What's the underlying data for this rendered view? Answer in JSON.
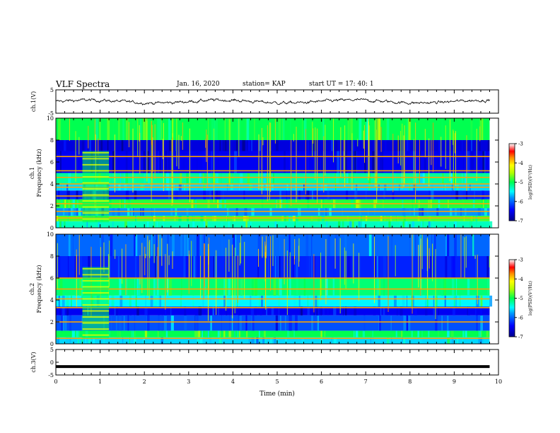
{
  "header": {
    "title": "VLF Spectra",
    "date": "Jan. 16, 2020",
    "station": "station= KAP",
    "start": "start  UT  =   17: 40: 1"
  },
  "chart_data": [
    {
      "type": "line",
      "name": "ch1_waveform",
      "ylabel": "ch.1(V)",
      "ylim": [
        -5,
        5
      ],
      "ytick_labels": [
        "5",
        "-5"
      ],
      "xlim": [
        0,
        10
      ],
      "x_extent": [
        0,
        9.8
      ],
      "baseline_v": 0,
      "amplitude_v": [
        -2,
        2.5
      ]
    },
    {
      "type": "heatmap",
      "name": "ch1_spectrogram",
      "ylabel": [
        "ch.1",
        "Frequency  (kHz)"
      ],
      "ylim": [
        0,
        10
      ],
      "ytick_labels": [
        "0",
        "2",
        "4",
        "6",
        "8",
        "10"
      ],
      "xlim": [
        0,
        10
      ],
      "x_extent": [
        0,
        9.8
      ],
      "colorbar": {
        "label": "log(PSD)(V²/Hz)",
        "range": [
          -7,
          -3
        ],
        "ticks": [
          "-3",
          "-4",
          "-5",
          "-6",
          "-7"
        ]
      },
      "background_log_psd": [
        {
          "f": [
            0,
            0.6
          ],
          "v": -5.3
        },
        {
          "f": [
            0.6,
            1.1
          ],
          "v": -4.8
        },
        {
          "f": [
            1.1,
            1.8
          ],
          "v": -5.8
        },
        {
          "f": [
            1.8,
            2.6
          ],
          "v": -4.9
        },
        {
          "f": [
            2.6,
            3.4
          ],
          "v": -6.3
        },
        {
          "f": [
            3.4,
            4.0
          ],
          "v": -5.6
        },
        {
          "f": [
            4.0,
            5.0
          ],
          "v": -5.2
        },
        {
          "f": [
            5.0,
            7.0
          ],
          "v": -6.5
        },
        {
          "f": [
            7.0,
            8.0
          ],
          "v": -6.6
        },
        {
          "f": [
            8.0,
            10.0
          ],
          "v": -5.0
        }
      ],
      "lines_khz": [
        0.9,
        1.5,
        2.2,
        2.9,
        3.7,
        4.0,
        4.6,
        5.2,
        6.5
      ],
      "transient_t_min": [
        0.6,
        1.2
      ]
    },
    {
      "type": "heatmap",
      "name": "ch2_spectrogram",
      "ylabel": [
        "ch.2",
        "Frequency  (kHz)"
      ],
      "ylim": [
        0,
        10
      ],
      "ytick_labels": [
        "0",
        "2",
        "4",
        "6",
        "8",
        "10"
      ],
      "xlim": [
        0,
        10
      ],
      "x_extent": [
        0,
        9.8
      ],
      "colorbar": {
        "label": "log(PSD)(V²/Hz)",
        "range": [
          -7,
          -3
        ],
        "ticks": [
          "-3",
          "-4",
          "-5",
          "-6",
          "-7"
        ]
      },
      "background_log_psd": [
        {
          "f": [
            0,
            0.6
          ],
          "v": -5.6
        },
        {
          "f": [
            0.6,
            1.2
          ],
          "v": -5.0
        },
        {
          "f": [
            1.2,
            2.6
          ],
          "v": -6.1
        },
        {
          "f": [
            2.6,
            3.4
          ],
          "v": -6.5
        },
        {
          "f": [
            3.4,
            4.4
          ],
          "v": -5.5
        },
        {
          "f": [
            4.4,
            6.0
          ],
          "v": -5.1
        },
        {
          "f": [
            6.0,
            8.0
          ],
          "v": -6.3
        },
        {
          "f": [
            8.0,
            10.0
          ],
          "v": -6.0
        }
      ],
      "lines_khz": [
        0.5,
        2.0,
        3.3,
        4.1,
        5.0,
        6.0
      ],
      "transient_t_min": [
        0.6,
        1.2
      ]
    },
    {
      "type": "line",
      "name": "ch3_waveform",
      "ylabel": "ch.3(V)",
      "ylim": [
        -5,
        5
      ],
      "ytick_labels": [
        "5",
        "0",
        "-5"
      ],
      "xlim": [
        0,
        10
      ],
      "x_extent": [
        0,
        9.8
      ],
      "constant_v": -1.7
    }
  ],
  "xaxis": {
    "label": "Time  (min)",
    "ticks": [
      "0",
      "1",
      "2",
      "3",
      "4",
      "5",
      "6",
      "7",
      "8",
      "9",
      "10"
    ]
  }
}
